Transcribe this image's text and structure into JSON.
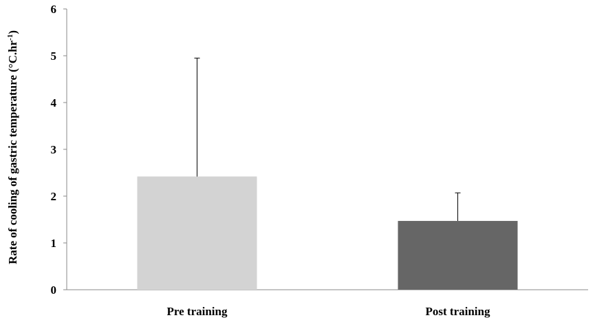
{
  "chart_data": {
    "type": "bar",
    "categories": [
      "Pre training",
      "Post training"
    ],
    "values": [
      2.42,
      1.47
    ],
    "error_upper": [
      2.53,
      0.6
    ],
    "colors": [
      "#d3d3d3",
      "#666666"
    ],
    "title": "",
    "xlabel": "",
    "ylabel": "Rate of cooling of gastric temperature (°C.hr",
    "ylabel_superscript": "-1",
    "ylabel_suffix": ")",
    "ylim": [
      0,
      6
    ],
    "yticks": [
      0,
      1,
      2,
      3,
      4,
      5,
      6
    ],
    "grid": false,
    "legend": "none"
  }
}
